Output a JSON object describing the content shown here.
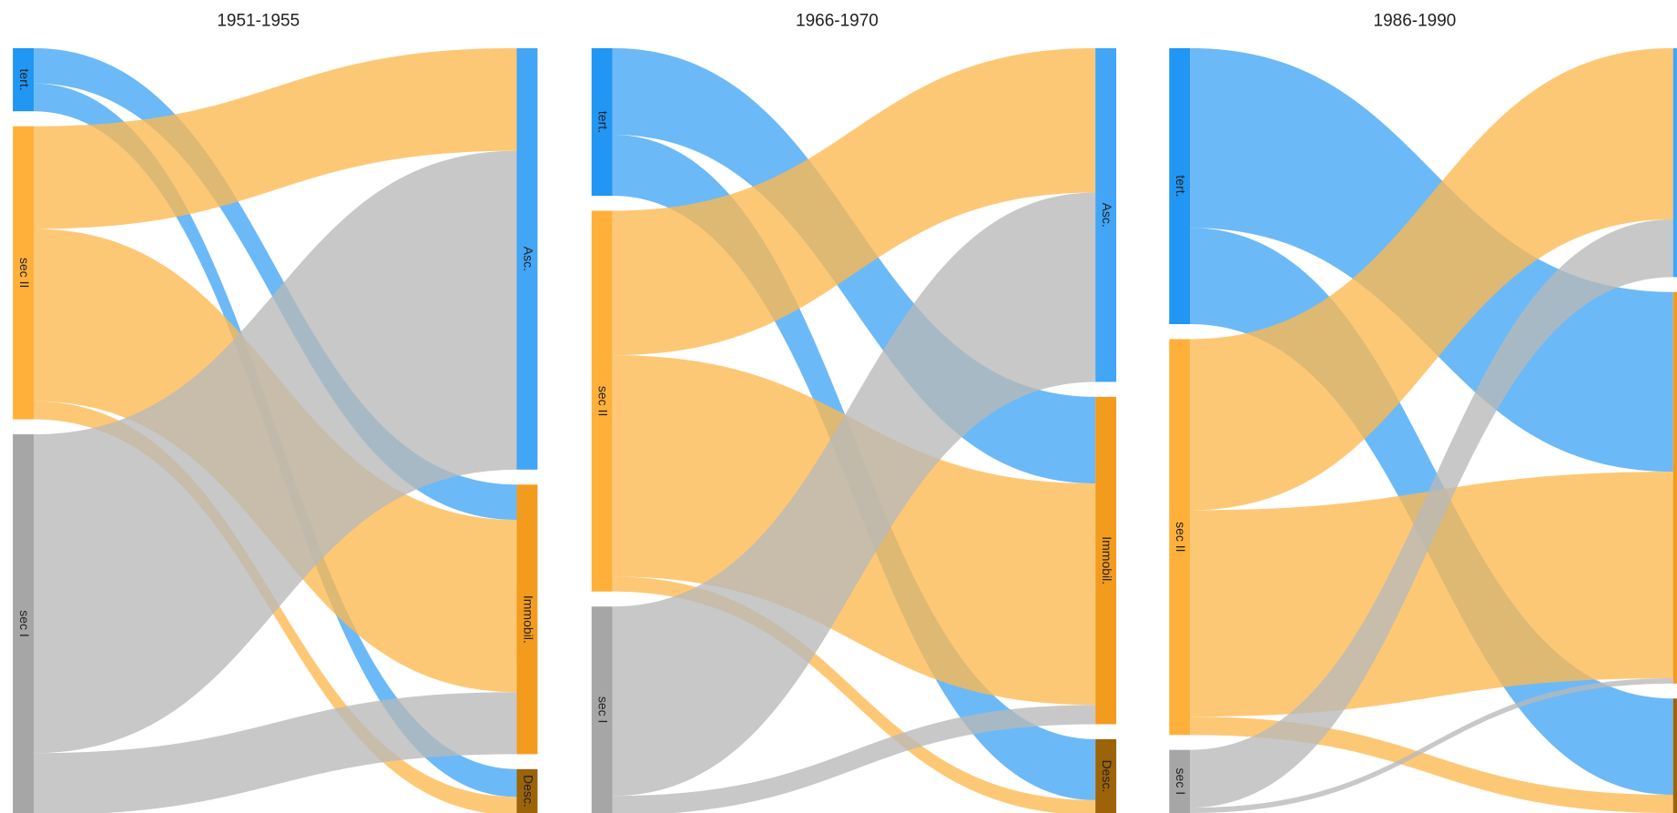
{
  "chart_data": {
    "type": "sankey",
    "sources": [
      "tert.",
      "sec II",
      "sec I"
    ],
    "targets": [
      "Asc.",
      "Immobil.",
      "Desc."
    ],
    "source_colors": [
      "#2196f3",
      "#ffb03b",
      "#a6a6a6"
    ],
    "link_colors": [
      "#42a5f5",
      "#fdb94f",
      "#b8b8b8"
    ],
    "target_colors": [
      "#42a5f5",
      "#f29b1d",
      "#9c6309"
    ],
    "panels": [
      {
        "title": "1951-1955",
        "links": [
          {
            "source": 0,
            "target": 1,
            "value": 33
          },
          {
            "source": 0,
            "target": 2,
            "value": 26
          },
          {
            "source": 1,
            "target": 0,
            "value": 96
          },
          {
            "source": 1,
            "target": 1,
            "value": 161
          },
          {
            "source": 1,
            "target": 2,
            "value": 17
          },
          {
            "source": 2,
            "target": 0,
            "value": 298
          },
          {
            "source": 2,
            "target": 1,
            "value": 58
          }
        ]
      },
      {
        "title": "1966-1970",
        "links": [
          {
            "source": 0,
            "target": 1,
            "value": 81
          },
          {
            "source": 0,
            "target": 2,
            "value": 57
          },
          {
            "source": 1,
            "target": 0,
            "value": 135
          },
          {
            "source": 1,
            "target": 1,
            "value": 207
          },
          {
            "source": 1,
            "target": 2,
            "value": 14
          },
          {
            "source": 2,
            "target": 0,
            "value": 177
          },
          {
            "source": 2,
            "target": 1,
            "value": 18
          }
        ]
      },
      {
        "title": "1986-1990",
        "links": [
          {
            "source": 0,
            "target": 1,
            "value": 168
          },
          {
            "source": 0,
            "target": 2,
            "value": 90
          },
          {
            "source": 1,
            "target": 0,
            "value": 160
          },
          {
            "source": 1,
            "target": 1,
            "value": 193
          },
          {
            "source": 1,
            "target": 2,
            "value": 17
          },
          {
            "source": 2,
            "target": 0,
            "value": 54
          },
          {
            "source": 2,
            "target": 1,
            "value": 5
          }
        ]
      }
    ]
  }
}
